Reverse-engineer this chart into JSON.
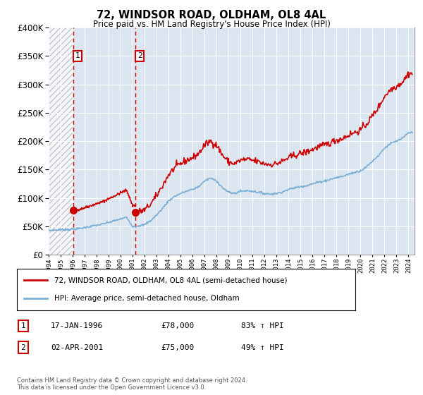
{
  "title": "72, WINDSOR ROAD, OLDHAM, OL8 4AL",
  "subtitle": "Price paid vs. HM Land Registry's House Price Index (HPI)",
  "legend_line1": "72, WINDSOR ROAD, OLDHAM, OL8 4AL (semi-detached house)",
  "legend_line2": "HPI: Average price, semi-detached house, Oldham",
  "sale1_date_label": "17-JAN-1996",
  "sale1_price": 78000,
  "sale1_hpi_note": "83% ↑ HPI",
  "sale1_year": 1996.05,
  "sale2_date_label": "02-APR-2001",
  "sale2_price": 75000,
  "sale2_hpi_note": "49% ↑ HPI",
  "sale2_year": 2001.25,
  "footer": "Contains HM Land Registry data © Crown copyright and database right 2024.\nThis data is licensed under the Open Government Licence v3.0.",
  "red_color": "#cc0000",
  "blue_color": "#7bafd4",
  "bg_color": "#dce6f1",
  "xmin": 1994.0,
  "xmax": 2024.5,
  "ymin": 0,
  "ymax": 400000,
  "hpi_years": [
    1994,
    1994.5,
    1995,
    1995.5,
    1996,
    1996.5,
    1997,
    1997.5,
    1998,
    1998.5,
    1999,
    1999.5,
    2000,
    2000.5,
    2001,
    2001.5,
    2002,
    2002.5,
    2003,
    2003.5,
    2004,
    2004.5,
    2005,
    2005.5,
    2006,
    2006.5,
    2007,
    2007.5,
    2008,
    2008.5,
    2009,
    2009.5,
    2010,
    2010.5,
    2011,
    2011.5,
    2012,
    2012.5,
    2013,
    2013.5,
    2014,
    2014.5,
    2015,
    2015.5,
    2016,
    2016.5,
    2017,
    2017.5,
    2018,
    2018.5,
    2019,
    2019.5,
    2020,
    2020.5,
    2021,
    2021.5,
    2022,
    2022.5,
    2023,
    2023.5,
    2024
  ],
  "hpi_vals": [
    43000,
    43500,
    44000,
    44500,
    45000,
    46000,
    48000,
    50000,
    52000,
    54000,
    57000,
    60000,
    63000,
    66000,
    50000,
    51000,
    53000,
    60000,
    70000,
    82000,
    95000,
    103000,
    108000,
    112000,
    115000,
    120000,
    130000,
    135000,
    130000,
    118000,
    110000,
    108000,
    112000,
    113000,
    112000,
    110000,
    108000,
    107000,
    108000,
    111000,
    115000,
    118000,
    120000,
    122000,
    125000,
    128000,
    130000,
    133000,
    136000,
    138000,
    142000,
    145000,
    148000,
    155000,
    165000,
    175000,
    188000,
    196000,
    200000,
    205000,
    215000
  ]
}
